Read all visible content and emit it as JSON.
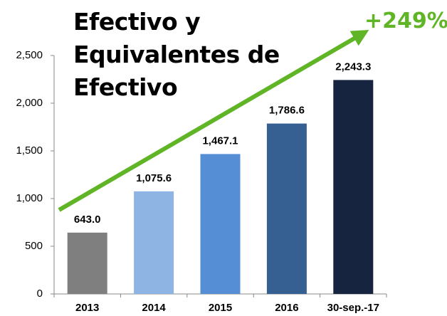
{
  "chart_data": {
    "type": "bar",
    "title": "Efectivo y Equivalentes de Efectivo",
    "annotation": "+249%",
    "categories": [
      "2013",
      "2014",
      "2015",
      "2016",
      "30-sep.-17"
    ],
    "values": [
      643.0,
      1075.6,
      1467.1,
      1786.6,
      2243.3
    ],
    "value_labels": [
      "643.0",
      "1,075.6",
      "1,467.1",
      "1,786.6",
      "2,243.3"
    ],
    "colors": [
      "#7f7f7f",
      "#8eb4e3",
      "#558ed5",
      "#376092",
      "#17243f"
    ],
    "ylim": [
      0,
      2500
    ],
    "yticks": [
      0,
      500,
      {
        "value": 1000,
        "label": "1,000"
      },
      {
        "value": 1500,
        "label": "1,500"
      },
      {
        "value": 2000,
        "label": "2,000"
      },
      {
        "value": 2500,
        "label": "2,500"
      }
    ],
    "grid": false
  }
}
